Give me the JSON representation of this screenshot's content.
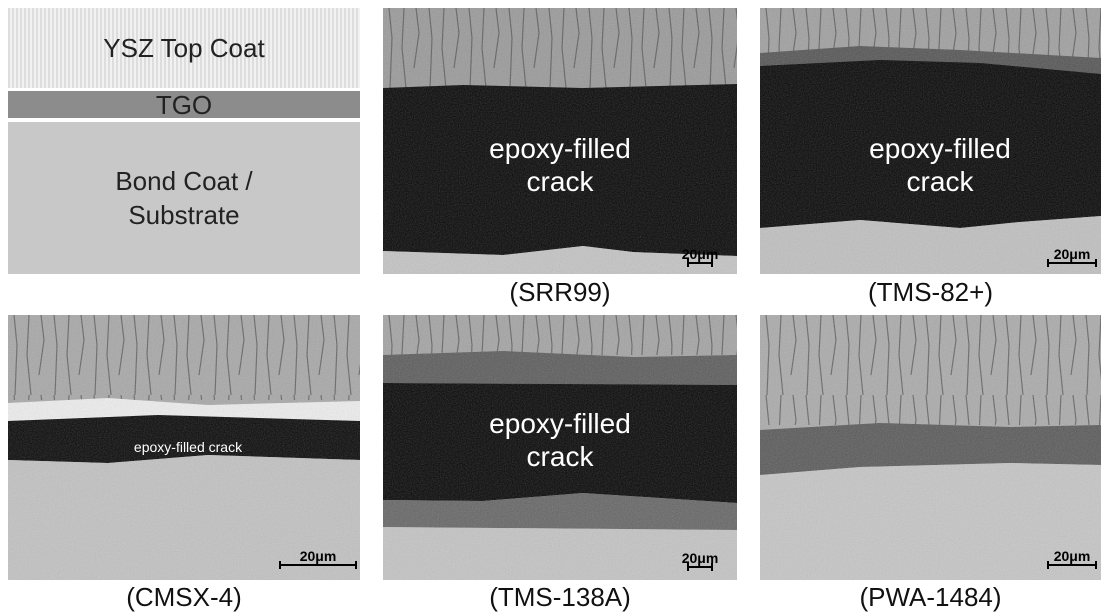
{
  "schematic": {
    "top_coat": "YSZ Top Coat",
    "tgo": "TGO",
    "bond_coat": "Bond Coat / Substrate"
  },
  "panels": [
    {
      "label": "(SRR99)",
      "crack_label": "epoxy-filled crack",
      "scale_bar": "20μm"
    },
    {
      "label": "(TMS-82+)",
      "crack_label": "epoxy-filled crack",
      "scale_bar": "20μm"
    },
    {
      "label": "(CMSX-4)",
      "crack_label": "epoxy-filled crack",
      "scale_bar": "20μm"
    },
    {
      "label": "(TMS-138A)",
      "crack_label": "epoxy-filled crack",
      "scale_bar": "20μm"
    },
    {
      "label": "(PWA-1484)",
      "scale_bar": "20μm"
    }
  ]
}
